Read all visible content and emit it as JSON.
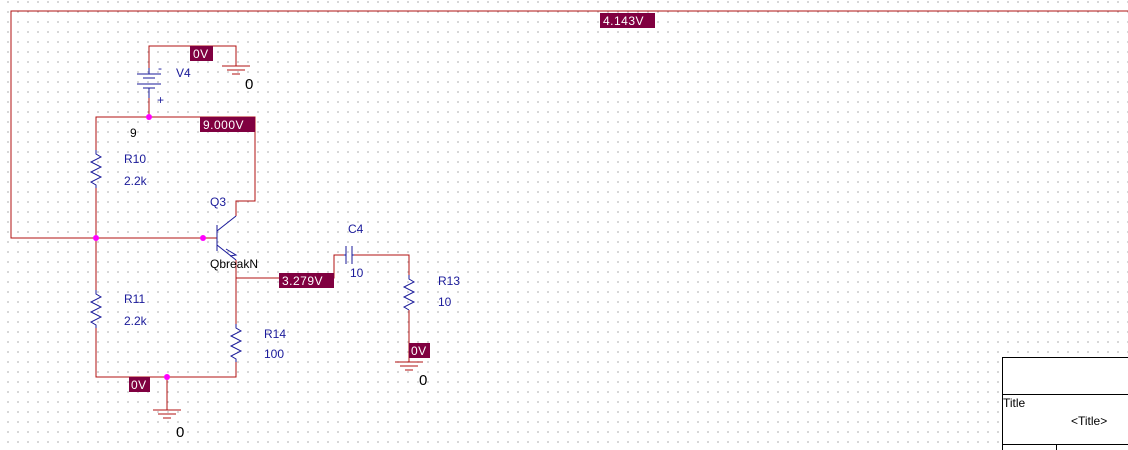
{
  "voltage_markers": {
    "top_feedback": "4.143V",
    "v4_top": "0V",
    "supply": "9.000V",
    "emitter": "3.279V",
    "r13_bottom": "0V",
    "bottom_rail": "0V"
  },
  "components": {
    "v4": {
      "name": "V4",
      "minus": "-",
      "plus": "+",
      "node_label": "9"
    },
    "r10": {
      "name": "R10",
      "value": "2.2k"
    },
    "r11": {
      "name": "R11",
      "value": "2.2k"
    },
    "r13": {
      "name": "R13",
      "value": "10"
    },
    "r14": {
      "name": "R14",
      "value": "100"
    },
    "q3": {
      "name": "Q3",
      "model": "QbreakN"
    },
    "c4": {
      "name": "C4",
      "value": "10"
    }
  },
  "grounds": {
    "v4_gnd": "0",
    "bottom_gnd": "0",
    "r13_gnd": "0"
  },
  "title_block": {
    "title_label": "Title",
    "title_value": "<Title>"
  },
  "colors": {
    "wire": "#b01010",
    "part": "#1a1a9a",
    "junction": "#ff00ff",
    "voltage_marker": "#800040"
  }
}
